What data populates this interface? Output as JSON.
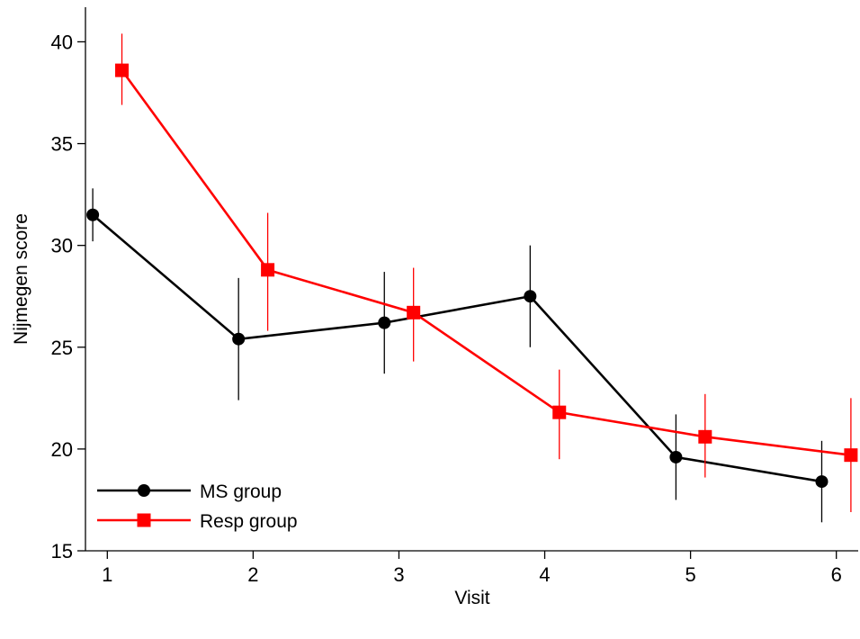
{
  "chart_data": {
    "type": "line",
    "xlabel": "Visit",
    "ylabel": "Nijmegen score",
    "x_ticks": [
      "1",
      "2",
      "3",
      "4",
      "5",
      "6"
    ],
    "y_ticks": [
      "15",
      "20",
      "25",
      "30",
      "35",
      "40"
    ],
    "xlim": [
      0.85,
      6.15
    ],
    "ylim": [
      15,
      41.7
    ],
    "grid": false,
    "legend_position": "bottom-left",
    "series": [
      {
        "name": "MS group",
        "color": "#000000",
        "marker": "circle",
        "x_offset": -0.1,
        "points": [
          {
            "x": 1,
            "y": 31.5,
            "lo": 30.2,
            "hi": 32.8
          },
          {
            "x": 2,
            "y": 25.4,
            "lo": 22.4,
            "hi": 28.4
          },
          {
            "x": 3,
            "y": 26.2,
            "lo": 23.7,
            "hi": 28.7
          },
          {
            "x": 4,
            "y": 27.5,
            "lo": 25.0,
            "hi": 30.0
          },
          {
            "x": 5,
            "y": 19.6,
            "lo": 17.5,
            "hi": 21.7
          },
          {
            "x": 6,
            "y": 18.4,
            "lo": 16.4,
            "hi": 20.4
          }
        ]
      },
      {
        "name": "Resp group",
        "color": "#ff0000",
        "marker": "square",
        "x_offset": 0.1,
        "points": [
          {
            "x": 1,
            "y": 38.6,
            "lo": 36.9,
            "hi": 40.4
          },
          {
            "x": 2,
            "y": 28.8,
            "lo": 25.8,
            "hi": 31.6
          },
          {
            "x": 3,
            "y": 26.7,
            "lo": 24.3,
            "hi": 28.9
          },
          {
            "x": 4,
            "y": 21.8,
            "lo": 19.5,
            "hi": 23.9
          },
          {
            "x": 5,
            "y": 20.6,
            "lo": 18.6,
            "hi": 22.7
          },
          {
            "x": 6,
            "y": 19.7,
            "lo": 16.9,
            "hi": 22.5
          }
        ]
      }
    ]
  }
}
